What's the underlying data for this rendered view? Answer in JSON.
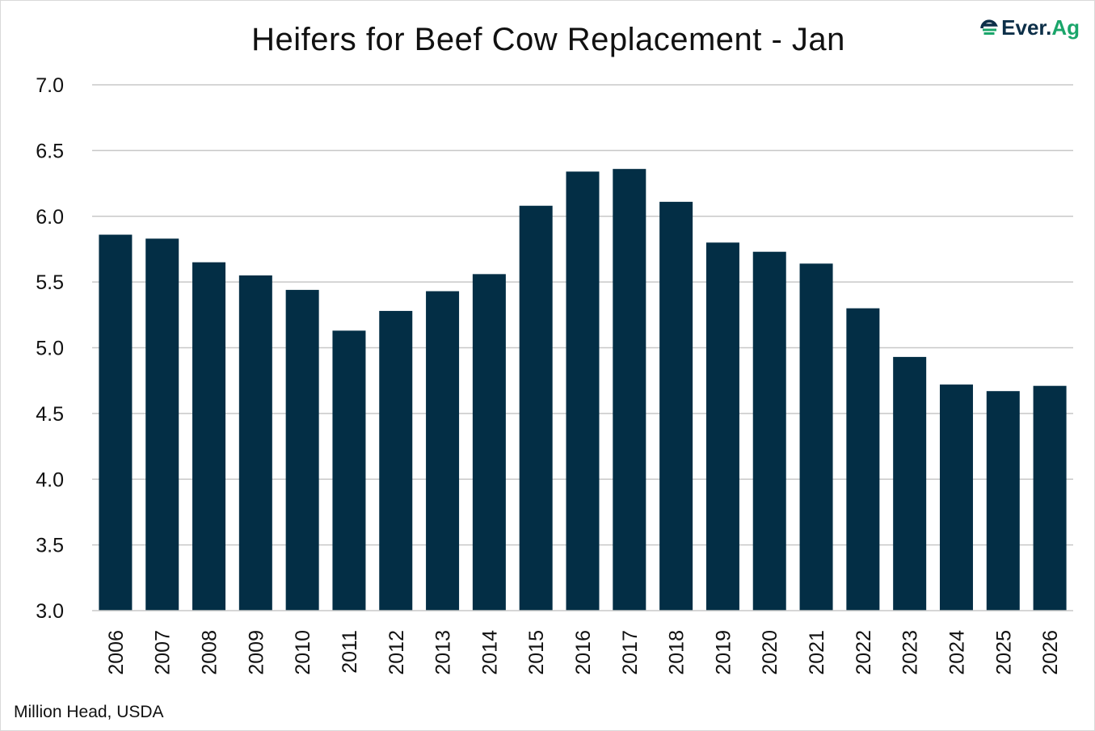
{
  "chart_data": {
    "type": "bar",
    "title": "Heifers for Beef Cow Replacement - Jan",
    "xlabel": "",
    "ylabel": "",
    "source_note": "Million Head, USDA",
    "categories": [
      "2006",
      "2007",
      "2008",
      "2009",
      "2010",
      "2011",
      "2012",
      "2013",
      "2014",
      "2015",
      "2016",
      "2017",
      "2018",
      "2019",
      "2020",
      "2021",
      "2022",
      "2023",
      "2024",
      "2025",
      "2026"
    ],
    "values": [
      5.86,
      5.83,
      5.65,
      5.55,
      5.44,
      5.13,
      5.28,
      5.43,
      5.56,
      6.08,
      6.34,
      6.36,
      6.11,
      5.8,
      5.73,
      5.64,
      5.3,
      4.93,
      4.72,
      4.67,
      4.71
    ],
    "ylim": [
      3.0,
      7.0
    ],
    "yticks": [
      "3.0",
      "3.5",
      "4.0",
      "4.5",
      "5.0",
      "5.5",
      "6.0",
      "6.5",
      "7.0"
    ],
    "grid": true,
    "bar_color": "#032e45"
  },
  "logo": {
    "text_main": "Ever.",
    "text_accent": "Ag",
    "main_color": "#0d2f48",
    "accent_color": "#1aa56a"
  }
}
